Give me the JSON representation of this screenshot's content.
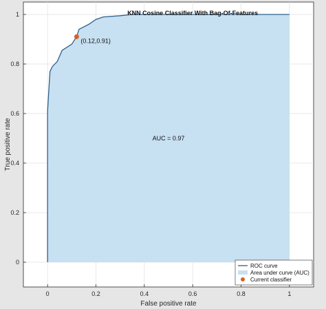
{
  "chart_data": {
    "type": "line",
    "title": "KNN Cosine Classifier With Bag-Of-Features",
    "xlabel": "False positive rate",
    "ylabel": "True positive rate",
    "xlim": [
      -0.1,
      1.1
    ],
    "ylim": [
      -0.1,
      1.05
    ],
    "grid": true,
    "x_ticks": [
      0,
      0.2,
      0.4,
      0.6,
      0.8,
      1
    ],
    "y_ticks": [
      0,
      0.2,
      0.4,
      0.6,
      0.8,
      1
    ],
    "x_tick_labels": [
      "0",
      "0.2",
      "0.4",
      "0.6",
      "0.8",
      "1"
    ],
    "y_tick_labels": [
      "0",
      "0.2",
      "0.4",
      "0.6",
      "0.8",
      "1"
    ],
    "series": [
      {
        "name": "ROC curve",
        "color": "#2e5f8a",
        "x": [
          0,
          0,
          0.003,
          0.01,
          0.02,
          0.04,
          0.06,
          0.1,
          0.12,
          0.13,
          0.17,
          0.2,
          0.23,
          0.3,
          0.35,
          0.5,
          1.0
        ],
        "y": [
          0,
          0.61,
          0.66,
          0.77,
          0.79,
          0.81,
          0.855,
          0.88,
          0.91,
          0.94,
          0.96,
          0.98,
          0.99,
          0.995,
          1.0,
          1.0,
          1.0
        ]
      }
    ],
    "area": {
      "name": "Area under curve (AUC)",
      "color": "#c7e0f2",
      "auc_label": "AUC = 0.97"
    },
    "current_point": {
      "name": "Current classifier",
      "x": 0.12,
      "y": 0.91,
      "label": "(0.12,0.91)",
      "color": "#d4622a"
    },
    "legend_position": "bottom-right"
  }
}
